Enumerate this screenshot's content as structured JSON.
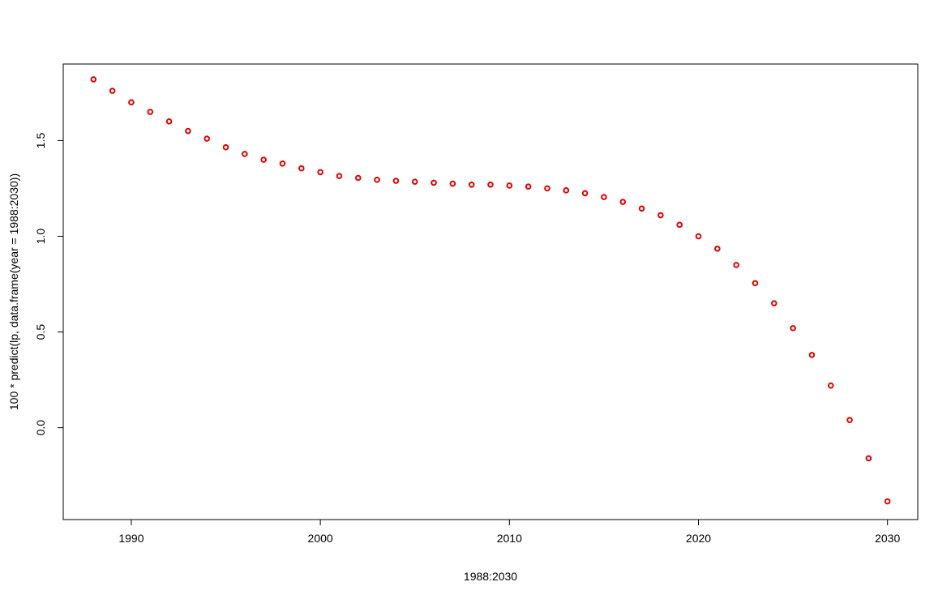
{
  "chart_data": {
    "type": "scatter",
    "xlabel": "1988:2030",
    "ylabel": "100 * predict(lp, data.frame(year = 1988:2030))",
    "xlim": [
      1986.4,
      2031.6
    ],
    "ylim": [
      -0.48,
      1.9
    ],
    "xticks": [
      1990,
      2000,
      2010,
      2020,
      2030
    ],
    "xtick_labels": [
      "1990",
      "2000",
      "2010",
      "2020",
      "2030"
    ],
    "yticks": [
      0.0,
      0.5,
      1.0,
      1.5
    ],
    "ytick_labels": [
      "0.0",
      "0.5",
      "1.0",
      "1.5"
    ],
    "grid": false,
    "point_color": "#e00000",
    "x": [
      1988,
      1989,
      1990,
      1991,
      1992,
      1993,
      1994,
      1995,
      1996,
      1997,
      1998,
      1999,
      2000,
      2001,
      2002,
      2003,
      2004,
      2005,
      2006,
      2007,
      2008,
      2009,
      2010,
      2011,
      2012,
      2013,
      2014,
      2015,
      2016,
      2017,
      2018,
      2019,
      2020,
      2021,
      2022,
      2023,
      2024,
      2025,
      2026,
      2027,
      2028,
      2029,
      2030
    ],
    "y": [
      1.82,
      1.76,
      1.7,
      1.65,
      1.6,
      1.55,
      1.51,
      1.465,
      1.43,
      1.4,
      1.38,
      1.355,
      1.335,
      1.315,
      1.305,
      1.295,
      1.29,
      1.285,
      1.28,
      1.275,
      1.27,
      1.27,
      1.265,
      1.26,
      1.25,
      1.24,
      1.225,
      1.205,
      1.18,
      1.145,
      1.11,
      1.06,
      1.0,
      0.935,
      0.85,
      0.755,
      0.65,
      0.52,
      0.38,
      0.22,
      0.04,
      -0.16,
      -0.385
    ]
  }
}
